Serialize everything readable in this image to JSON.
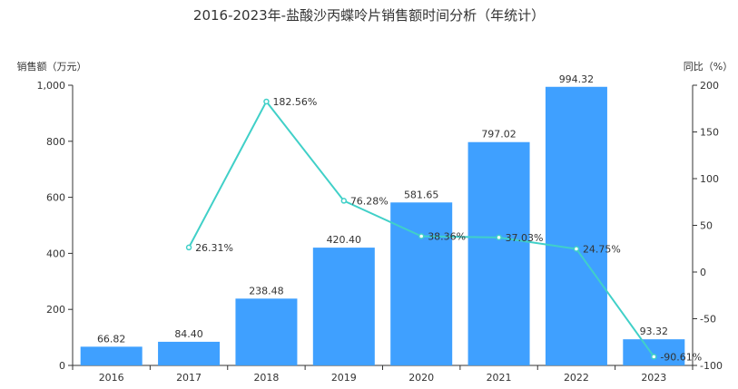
{
  "chart_data": {
    "type": "bar",
    "title": "2016-2023年-盐酸沙丙蝶呤片销售额时间分析（年统计）",
    "categories": [
      "2016",
      "2017",
      "2018",
      "2019",
      "2020",
      "2021",
      "2022",
      "2023"
    ],
    "series": [
      {
        "type": "bar",
        "axis": "left",
        "values": [
          66.82,
          84.4,
          238.48,
          420.4,
          581.65,
          797.02,
          994.32,
          93.32
        ],
        "labels": [
          "66.82",
          "84.40",
          "238.48",
          "420.40",
          "581.65",
          "797.02",
          "994.32",
          "93.32"
        ]
      },
      {
        "type": "line",
        "axis": "right",
        "values": [
          null,
          26.31,
          182.56,
          76.28,
          38.36,
          37.03,
          24.75,
          -90.61
        ],
        "labels": [
          "",
          "26.31%",
          "182.56%",
          "76.28%",
          "38.36%",
          "37.03%",
          "24.75%",
          "-90.61%"
        ]
      }
    ],
    "y_left": {
      "label": "销售额（万元）",
      "min": 0,
      "max": 1000,
      "ticks": [
        0,
        200,
        400,
        600,
        800,
        1000
      ],
      "tick_labels": [
        "0",
        "200",
        "400",
        "600",
        "800",
        "1,000"
      ]
    },
    "y_right": {
      "label": "同比（%）",
      "min": -100,
      "max": 200,
      "ticks": [
        -100,
        -50,
        0,
        50,
        100,
        150,
        200
      ],
      "tick_labels": [
        "-100",
        "-50",
        "0",
        "50",
        "100",
        "150",
        "200"
      ]
    },
    "grid": false,
    "colors": {
      "bar": "#3fa0ff",
      "line": "#40d0c8",
      "axis": "#333333"
    }
  }
}
